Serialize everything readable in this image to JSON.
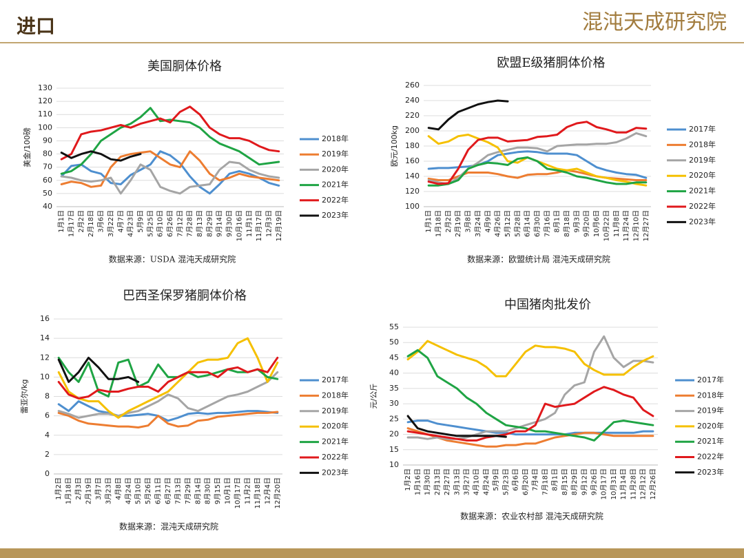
{
  "header": {
    "title": "进口",
    "logo": "混沌天成研究院"
  },
  "chart_data": [
    {
      "type": "line",
      "title": "美国胴体价格",
      "y_label": "美金/100磅",
      "source": "数据来源：USDA  混沌天成研究院",
      "categories": [
        "1月1日",
        "1月17日",
        "2月2日",
        "2月18日",
        "3月6日",
        "3月22日",
        "4月7日",
        "4月23日",
        "5月9日",
        "5月25日",
        "6月10日",
        "6月26日",
        "7月12日",
        "7月28日",
        "8月13日",
        "8月29日",
        "9月14日",
        "9月30日",
        "10月16日",
        "11月1日",
        "11月17日",
        "12月3日",
        "12月19日"
      ],
      "ylim": [
        40,
        130
      ],
      "yticks": [
        40,
        50,
        60,
        70,
        80,
        90,
        100,
        110,
        120,
        130
      ],
      "grid": true,
      "series": [
        {
          "name": "2018年",
          "color": "#4e8fcf",
          "values": [
            63,
            71,
            72,
            67,
            65,
            58,
            57,
            64,
            68,
            72,
            82,
            79,
            73,
            63,
            55,
            50,
            57,
            65,
            67,
            65,
            62,
            58,
            56
          ]
        },
        {
          "name": "2019年",
          "color": "#ed7d31",
          "values": [
            57,
            59,
            58,
            55,
            56,
            70,
            78,
            80,
            81,
            82,
            77,
            72,
            70,
            82,
            75,
            65,
            60,
            62,
            65,
            63,
            62,
            61,
            60
          ]
        },
        {
          "name": "2020年",
          "color": "#a5a5a5",
          "values": [
            63,
            62,
            60,
            59,
            60,
            62,
            50,
            60,
            72,
            68,
            55,
            52,
            50,
            55,
            56,
            57,
            68,
            74,
            73,
            68,
            65,
            63,
            62
          ]
        },
        {
          "name": "2021年",
          "color": "#1fa444",
          "values": [
            65,
            67,
            72,
            80,
            90,
            95,
            100,
            103,
            108,
            115,
            105,
            106,
            105,
            104,
            100,
            93,
            88,
            85,
            82,
            77,
            72,
            73,
            74
          ]
        },
        {
          "name": "2022年",
          "color": "#e0191c",
          "values": [
            76,
            80,
            95,
            97,
            98,
            100,
            102,
            100,
            103,
            105,
            107,
            104,
            112,
            116,
            110,
            100,
            95,
            92,
            92,
            90,
            86,
            83,
            82
          ]
        },
        {
          "name": "2023年",
          "color": "#111111",
          "values": [
            81,
            77,
            80,
            82,
            80,
            76,
            75,
            78,
            80,
            null,
            null,
            null,
            null,
            null,
            null,
            null,
            null,
            null,
            null,
            null,
            null,
            null,
            null
          ]
        }
      ]
    },
    {
      "type": "line",
      "title": "欧盟E级猪胴体价格",
      "y_label": "欧元/100kg",
      "source": "数据来源：欧盟统计局  混沌天成研究院",
      "categories": [
        "1月1日",
        "1月18日",
        "2月2日",
        "2月19日",
        "3月8日",
        "3月24日",
        "4月9日",
        "4月26日",
        "5月12日",
        "5月28日",
        "6月14日",
        "6月30日",
        "7月16日",
        "8月1日",
        "8月18日",
        "9月3日",
        "9月20日",
        "10月6日",
        "10月22日",
        "11月8日",
        "11月24日",
        "12月10日",
        "12月27日"
      ],
      "ylim": [
        100,
        260
      ],
      "yticks": [
        100,
        120,
        140,
        160,
        180,
        200,
        220,
        240,
        260
      ],
      "grid": true,
      "series": [
        {
          "name": "2017年",
          "color": "#4e8fcf",
          "values": [
            150,
            151,
            151,
            152,
            153,
            155,
            160,
            168,
            170,
            172,
            173,
            172,
            170,
            170,
            170,
            168,
            160,
            152,
            148,
            145,
            143,
            142,
            138
          ]
        },
        {
          "name": "2018年",
          "color": "#ed7d31",
          "values": [
            137,
            135,
            135,
            140,
            145,
            145,
            145,
            143,
            140,
            138,
            142,
            143,
            143,
            145,
            148,
            146,
            143,
            140,
            138,
            137,
            136,
            135,
            135
          ]
        },
        {
          "name": "2019年",
          "color": "#a5a5a5",
          "values": [
            135,
            132,
            130,
            138,
            150,
            158,
            168,
            172,
            175,
            178,
            178,
            177,
            173,
            180,
            181,
            182,
            182,
            183,
            183,
            185,
            190,
            197,
            193
          ]
        },
        {
          "name": "2020年",
          "color": "#f5c000",
          "values": [
            193,
            183,
            186,
            193,
            195,
            190,
            185,
            178,
            160,
            158,
            165,
            160,
            155,
            150,
            148,
            150,
            145,
            140,
            138,
            135,
            133,
            130,
            128
          ]
        },
        {
          "name": "2021年",
          "color": "#1fa444",
          "values": [
            128,
            128,
            130,
            135,
            150,
            155,
            158,
            157,
            155,
            163,
            165,
            160,
            150,
            148,
            145,
            140,
            138,
            135,
            132,
            130,
            130,
            132,
            132
          ]
        },
        {
          "name": "2022年",
          "color": "#e0191c",
          "values": [
            133,
            130,
            131,
            150,
            175,
            188,
            191,
            191,
            186,
            187,
            188,
            192,
            193,
            195,
            205,
            210,
            212,
            205,
            202,
            198,
            198,
            204,
            203
          ]
        },
        {
          "name": "2023年",
          "color": "#111111",
          "values": [
            204,
            202,
            215,
            225,
            230,
            235,
            238,
            240,
            239,
            null,
            null,
            null,
            null,
            null,
            null,
            null,
            null,
            null,
            null,
            null,
            null,
            null,
            null
          ]
        }
      ]
    },
    {
      "type": "line",
      "title": "巴西圣保罗猪胴体价格",
      "y_label": "雷亚尔/kg",
      "source": "数据来源：混沌天成研究院",
      "categories": [
        "1月2日",
        "1月18日",
        "2月3日",
        "2月19日",
        "3月7日",
        "3月23日",
        "4月8日",
        "4月24日",
        "5月10日",
        "5月26日",
        "6月11日",
        "6月27日",
        "7月13日",
        "7月29日",
        "8月14日",
        "8月30日",
        "9月15日",
        "10月1日",
        "10月17日",
        "11月2日",
        "11月18日",
        "12月4日",
        "12月20日"
      ],
      "ylim": [
        0,
        16
      ],
      "yticks": [
        0,
        2,
        4,
        6,
        8,
        10,
        12,
        14,
        16
      ],
      "grid": true,
      "series": [
        {
          "name": "2017年",
          "color": "#4e8fcf",
          "values": [
            7.2,
            6.5,
            7.5,
            7.0,
            6.5,
            6.3,
            6.0,
            6.0,
            6.1,
            6.2,
            6.0,
            5.5,
            5.8,
            6.2,
            6.3,
            6.2,
            6.3,
            6.3,
            6.4,
            6.5,
            6.5,
            6.4,
            6.3
          ]
        },
        {
          "name": "2018年",
          "color": "#ed7d31",
          "values": [
            6.3,
            6.0,
            5.5,
            5.2,
            5.1,
            5.0,
            4.9,
            4.9,
            4.8,
            5.0,
            6.0,
            5.2,
            4.9,
            5.0,
            5.5,
            5.6,
            5.9,
            6.0,
            6.1,
            6.2,
            6.3,
            6.3,
            6.4
          ]
        },
        {
          "name": "2019年",
          "color": "#a5a5a5",
          "values": [
            6.5,
            6.2,
            5.8,
            6.0,
            6.2,
            6.2,
            6.0,
            6.3,
            6.5,
            7.0,
            7.5,
            8.2,
            7.8,
            6.8,
            6.5,
            7.0,
            7.5,
            8.0,
            8.2,
            8.5,
            9.0,
            9.5,
            10.5
          ]
        },
        {
          "name": "2020年",
          "color": "#f5c000",
          "values": [
            10.5,
            8.5,
            7.8,
            7.5,
            7.5,
            6.5,
            5.8,
            6.5,
            7.0,
            7.5,
            8.0,
            8.5,
            9.5,
            10.5,
            11.5,
            11.8,
            11.8,
            12.0,
            13.5,
            14.0,
            12.0,
            9.5,
            11.5
          ]
        },
        {
          "name": "2021年",
          "color": "#1fa444",
          "values": [
            12.0,
            10.5,
            9.5,
            11.5,
            8.5,
            8.0,
            11.5,
            11.8,
            9.0,
            9.5,
            11.3,
            10.0,
            10.0,
            10.5,
            10.0,
            10.2,
            10.5,
            10.8,
            10.5,
            10.5,
            10.8,
            10.0,
            9.8
          ]
        },
        {
          "name": "2022年",
          "color": "#e0191c",
          "values": [
            9.5,
            8.2,
            7.8,
            8.0,
            8.7,
            8.5,
            8.5,
            8.8,
            9.0,
            9.0,
            8.5,
            9.5,
            10.0,
            10.5,
            10.5,
            10.5,
            10.0,
            10.8,
            11.0,
            10.5,
            10.8,
            10.5,
            12.0
          ]
        },
        {
          "name": "2023年",
          "color": "#111111",
          "values": [
            11.8,
            9.5,
            10.5,
            12.0,
            11.0,
            9.8,
            9.8,
            10.0,
            9.5,
            null,
            null,
            null,
            null,
            null,
            null,
            null,
            null,
            null,
            null,
            null,
            null,
            null,
            null
          ]
        }
      ]
    },
    {
      "type": "line",
      "title": "中国猪肉批发价",
      "y_label": "元/公斤",
      "source": "数据来源：农业农村部  混沌天成研究院",
      "categories": [
        "1月2日",
        "1月16日",
        "1月30日",
        "2月13日",
        "2月27日",
        "3月13日",
        "3月27日",
        "4月10日",
        "4月24日",
        "5月9日",
        "5月23日",
        "6月6日",
        "6月20日",
        "7月4日",
        "7月18日",
        "8月1日",
        "8月15日",
        "8月29日",
        "9月12日",
        "9月26日",
        "10月17日",
        "10月31日",
        "11月14日",
        "11月28日",
        "12月12日",
        "12月26日"
      ],
      "ylim": [
        10,
        55
      ],
      "yticks": [
        10,
        15,
        20,
        25,
        30,
        35,
        40,
        45,
        50,
        55
      ],
      "grid": true,
      "series": [
        {
          "name": "2017年",
          "color": "#4e8fcf",
          "values": [
            24,
            24.5,
            24.5,
            23.5,
            23,
            22.5,
            22,
            21.5,
            21,
            20.5,
            20.5,
            20,
            20,
            20,
            20,
            20,
            20,
            20.5,
            20.5,
            20.5,
            20.5,
            20.5,
            20.5,
            20.5,
            21,
            21
          ]
        },
        {
          "name": "2018年",
          "color": "#ed7d31",
          "values": [
            22,
            21,
            20,
            19,
            18,
            17.5,
            17,
            16.5,
            16,
            16,
            16.5,
            16.5,
            17,
            17,
            18,
            19,
            19.5,
            20,
            20.5,
            20.5,
            20,
            19.5,
            19.5,
            19.5,
            19.5,
            19.5
          ]
        },
        {
          "name": "2019年",
          "color": "#a5a5a5",
          "values": [
            19,
            19,
            18.5,
            19,
            18.5,
            18.5,
            19,
            20,
            21,
            21,
            21,
            22,
            23,
            24,
            25,
            27,
            33,
            36,
            37,
            47,
            52,
            45,
            42,
            44,
            44,
            43.5
          ]
        },
        {
          "name": "2020年",
          "color": "#f5c000",
          "values": [
            44.5,
            47,
            50.5,
            49,
            47.5,
            46,
            45,
            44,
            42,
            39,
            39,
            43,
            47,
            49,
            48.5,
            48.5,
            48,
            47,
            43,
            41,
            39.5,
            39.5,
            39.5,
            42,
            44,
            45.5
          ]
        },
        {
          "name": "2021年",
          "color": "#1fa444",
          "values": [
            45.5,
            47.5,
            45,
            39,
            37,
            35,
            32,
            30,
            27,
            25,
            23,
            22.5,
            22,
            21,
            21,
            20.5,
            20,
            19.5,
            19,
            18,
            21,
            24,
            24.5,
            24,
            23.5,
            23
          ]
        },
        {
          "name": "2022年",
          "color": "#e0191c",
          "values": [
            21,
            20.5,
            20,
            19.5,
            19,
            18.5,
            18,
            18,
            19,
            19.5,
            20,
            21,
            21,
            23,
            30,
            29,
            29.5,
            30,
            32,
            34,
            35.5,
            34.5,
            33,
            32,
            28,
            26
          ]
        },
        {
          "name": "2023年",
          "color": "#111111",
          "values": [
            26,
            22,
            21,
            20.5,
            20,
            19.5,
            19.5,
            19.5,
            19.5,
            19.5,
            19.2,
            null,
            null,
            null,
            null,
            null,
            null,
            null,
            null,
            null,
            null,
            null,
            null,
            null,
            null,
            null
          ]
        }
      ]
    }
  ]
}
